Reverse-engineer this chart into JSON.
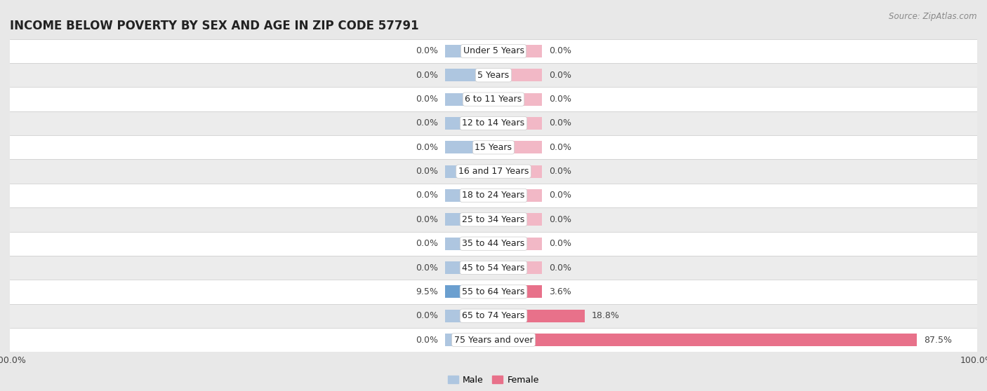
{
  "title": "INCOME BELOW POVERTY BY SEX AND AGE IN ZIP CODE 57791",
  "source": "Source: ZipAtlas.com",
  "categories": [
    "Under 5 Years",
    "5 Years",
    "6 to 11 Years",
    "12 to 14 Years",
    "15 Years",
    "16 and 17 Years",
    "18 to 24 Years",
    "25 to 34 Years",
    "35 to 44 Years",
    "45 to 54 Years",
    "55 to 64 Years",
    "65 to 74 Years",
    "75 Years and over"
  ],
  "male_values": [
    0.0,
    0.0,
    0.0,
    0.0,
    0.0,
    0.0,
    0.0,
    0.0,
    0.0,
    0.0,
    9.5,
    0.0,
    0.0
  ],
  "female_values": [
    0.0,
    0.0,
    0.0,
    0.0,
    0.0,
    0.0,
    0.0,
    0.0,
    0.0,
    0.0,
    3.6,
    18.8,
    87.5
  ],
  "male_color_zero": "#aec6e0",
  "female_color_zero": "#f2b8c6",
  "male_color_nonzero": "#6b9fcf",
  "female_color_nonzero": "#e8718a",
  "row_even_color": "#ffffff",
  "row_odd_color": "#ececec",
  "row_border_color": "#d0d0d0",
  "bg_color": "#e8e8e8",
  "xlim": 100.0,
  "min_bar_width": 10.0,
  "bar_height": 0.52,
  "title_fontsize": 12,
  "label_fontsize": 9,
  "value_fontsize": 9,
  "tick_fontsize": 9,
  "source_fontsize": 8.5,
  "legend_fontsize": 9
}
